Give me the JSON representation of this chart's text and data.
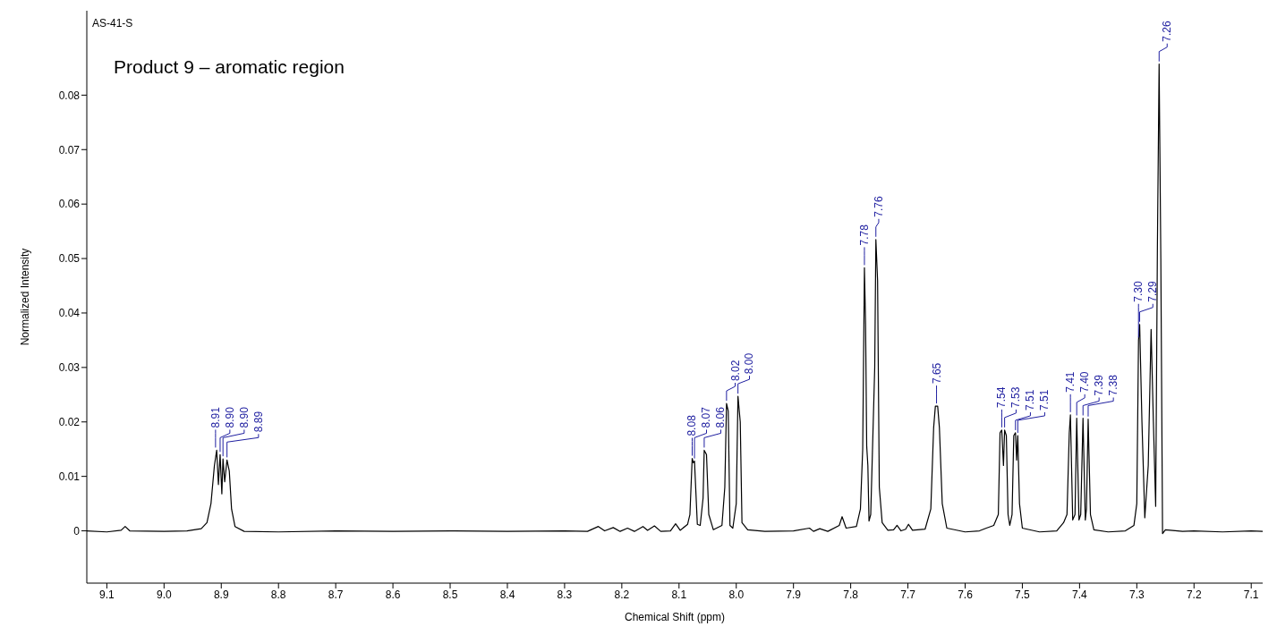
{
  "chart_data": {
    "type": "line",
    "title": "Product 9 – aromatic region",
    "subtitle": "AS-41-S",
    "xlabel": "Chemical Shift (ppm)",
    "ylabel": "Normalized Intensity",
    "xlim": [
      9.135,
      7.08
    ],
    "ylim": [
      -0.0096,
      0.0955
    ],
    "xticks": [
      9.1,
      {
        "value": 9,
        "label": "9.0"
      },
      8.9,
      8.8,
      8.7,
      8.6,
      8.5,
      8.4,
      8.3,
      8.2,
      8.1,
      {
        "value": 8,
        "label": "8.0"
      },
      7.9,
      7.8,
      7.7,
      7.6,
      7.5,
      7.4,
      7.3,
      7.2,
      7.1
    ],
    "yticks": [
      0,
      0.01,
      0.02,
      0.03,
      0.04,
      0.05,
      0.06,
      0.07,
      0.08
    ],
    "grid": false,
    "marker": "none",
    "line_style": "solid",
    "series": [
      {
        "color": "#000000",
        "x": [
          9.135,
          9.1,
          9.075,
          9.068,
          9.06,
          9.0,
          8.96,
          8.935,
          8.925,
          8.918,
          8.912,
          8.908,
          8.905,
          8.902,
          8.899,
          8.897,
          8.894,
          8.89,
          8.886,
          8.882,
          8.876,
          8.86,
          8.8,
          8.7,
          8.6,
          8.5,
          8.4,
          8.3,
          8.26,
          8.241,
          8.23,
          8.215,
          8.203,
          8.19,
          8.178,
          8.163,
          8.155,
          8.143,
          8.132,
          8.115,
          8.106,
          8.098,
          8.085,
          8.081,
          8.077,
          8.075,
          8.073,
          8.068,
          8.063,
          8.058,
          8.056,
          8.052,
          8.048,
          8.04,
          8.025,
          8.02,
          8.017,
          8.014,
          8.011,
          8.006,
          8.0,
          7.997,
          7.993,
          7.99,
          7.98,
          7.95,
          7.9,
          7.872,
          7.865,
          7.854,
          7.84,
          7.82,
          7.815,
          7.808,
          7.79,
          7.783,
          7.779,
          7.776,
          7.774,
          7.772,
          7.77,
          7.768,
          7.765,
          7.762,
          7.758,
          7.756,
          7.753,
          7.75,
          7.745,
          7.735,
          7.725,
          7.719,
          7.712,
          7.704,
          7.699,
          7.692,
          7.67,
          7.66,
          7.655,
          7.652,
          7.648,
          7.645,
          7.64,
          7.632,
          7.6,
          7.575,
          7.563,
          7.55,
          7.542,
          7.539,
          7.536,
          7.533,
          7.531,
          7.528,
          7.525,
          7.522,
          7.518,
          7.515,
          7.512,
          7.51,
          7.508,
          7.505,
          7.5,
          7.47,
          7.44,
          7.428,
          7.422,
          7.418,
          7.416,
          7.412,
          7.408,
          7.405,
          7.401,
          7.398,
          7.394,
          7.39,
          7.388,
          7.385,
          7.381,
          7.375,
          7.35,
          7.32,
          7.305,
          7.3,
          7.297,
          7.295,
          7.291,
          7.286,
          7.28,
          7.275,
          7.271,
          7.267,
          7.264,
          7.261,
          7.258,
          7.255,
          7.25,
          7.22,
          7.2,
          7.15,
          7.1,
          7.08
        ],
        "values": [
          0,
          -0.0002,
          0.0001,
          0.0008,
          0,
          -0.0001,
          0,
          0.0004,
          0.0015,
          0.005,
          0.012,
          0.0148,
          0.0085,
          0.014,
          0.0068,
          0.0132,
          0.009,
          0.013,
          0.011,
          0.004,
          0.0008,
          -0.0001,
          -0.0002,
          0,
          -0.0001,
          0,
          -0.0001,
          0,
          -0.0001,
          0.0008,
          0,
          0.0006,
          -0.0001,
          0.0005,
          -0.0001,
          0.0008,
          0.0001,
          0.0009,
          -0.0001,
          0,
          0.0013,
          0.0001,
          0.0012,
          0.003,
          0.0133,
          0.0125,
          0.0128,
          0.0012,
          0.001,
          0.006,
          0.0148,
          0.014,
          0.003,
          0.0002,
          0.001,
          0.008,
          0.0234,
          0.022,
          0.001,
          0.0005,
          0.005,
          0.0247,
          0.02,
          0.0015,
          0.0002,
          -0.0001,
          0,
          0.0005,
          -0.0001,
          0.0004,
          -0.0001,
          0.001,
          0.0026,
          0.0005,
          0.0008,
          0.004,
          0.015,
          0.0483,
          0.038,
          0.0155,
          0.012,
          0.0018,
          0.003,
          0.0145,
          0.03,
          0.0535,
          0.046,
          0.008,
          0.0015,
          0.0001,
          0.0002,
          0.001,
          0,
          0.0003,
          0.0012,
          0.0001,
          0.0003,
          0.004,
          0.019,
          0.0229,
          0.0229,
          0.019,
          0.005,
          0.0005,
          -0.0002,
          0,
          0.0005,
          0.001,
          0.003,
          0.018,
          0.0185,
          0.012,
          0.0185,
          0.0175,
          0.003,
          0.001,
          0.003,
          0.0175,
          0.018,
          0.013,
          0.0175,
          0.005,
          0.0005,
          -0.0002,
          0,
          0.0015,
          0.003,
          0.018,
          0.0213,
          0.002,
          0.003,
          0.0207,
          0.002,
          0.003,
          0.0207,
          0.002,
          0.004,
          0.0205,
          0.003,
          0.0002,
          -0.0002,
          0,
          0.001,
          0.005,
          0.035,
          0.0379,
          0.02,
          0.0024,
          0.012,
          0.037,
          0.02,
          0.0045,
          0.052,
          0.0857,
          0.05,
          -0.0005,
          0.0002,
          -0.0001,
          0,
          -0.0002,
          0,
          -0.0001
        ]
      }
    ],
    "annotations": [
      {
        "text": "8.91",
        "x": 8.91,
        "y": 0.0148
      },
      {
        "text": "8.90",
        "x": 8.902,
        "y": 0.014
      },
      {
        "text": "8.90",
        "x": 8.897,
        "y": 0.0132
      },
      {
        "text": "8.89",
        "x": 8.89,
        "y": 0.013
      },
      {
        "text": "8.08",
        "x": 8.077,
        "y": 0.0133
      },
      {
        "text": "8.07",
        "x": 8.073,
        "y": 0.0128
      },
      {
        "text": "8.06",
        "x": 8.056,
        "y": 0.0148
      },
      {
        "text": "8.02",
        "x": 8.017,
        "y": 0.0234
      },
      {
        "text": "8.00",
        "x": 7.997,
        "y": 0.0247
      },
      {
        "text": "7.78",
        "x": 7.776,
        "y": 0.0483
      },
      {
        "text": "7.76",
        "x": 7.756,
        "y": 0.0535
      },
      {
        "text": "7.65",
        "x": 7.65,
        "y": 0.0229
      },
      {
        "text": "7.54",
        "x": 7.536,
        "y": 0.0185
      },
      {
        "text": "7.53",
        "x": 7.531,
        "y": 0.0185
      },
      {
        "text": "7.51",
        "x": 7.512,
        "y": 0.018
      },
      {
        "text": "7.51",
        "x": 7.508,
        "y": 0.0175
      },
      {
        "text": "7.41",
        "x": 7.416,
        "y": 0.0213
      },
      {
        "text": "7.40",
        "x": 7.405,
        "y": 0.0207
      },
      {
        "text": "7.39",
        "x": 7.394,
        "y": 0.0207
      },
      {
        "text": "7.38",
        "x": 7.385,
        "y": 0.0205
      },
      {
        "text": "7.30",
        "x": 7.297,
        "y": 0.035
      },
      {
        "text": "7.29",
        "x": 7.295,
        "y": 0.0379
      },
      {
        "text": "7.26",
        "x": 7.261,
        "y": 0.0857
      }
    ]
  }
}
